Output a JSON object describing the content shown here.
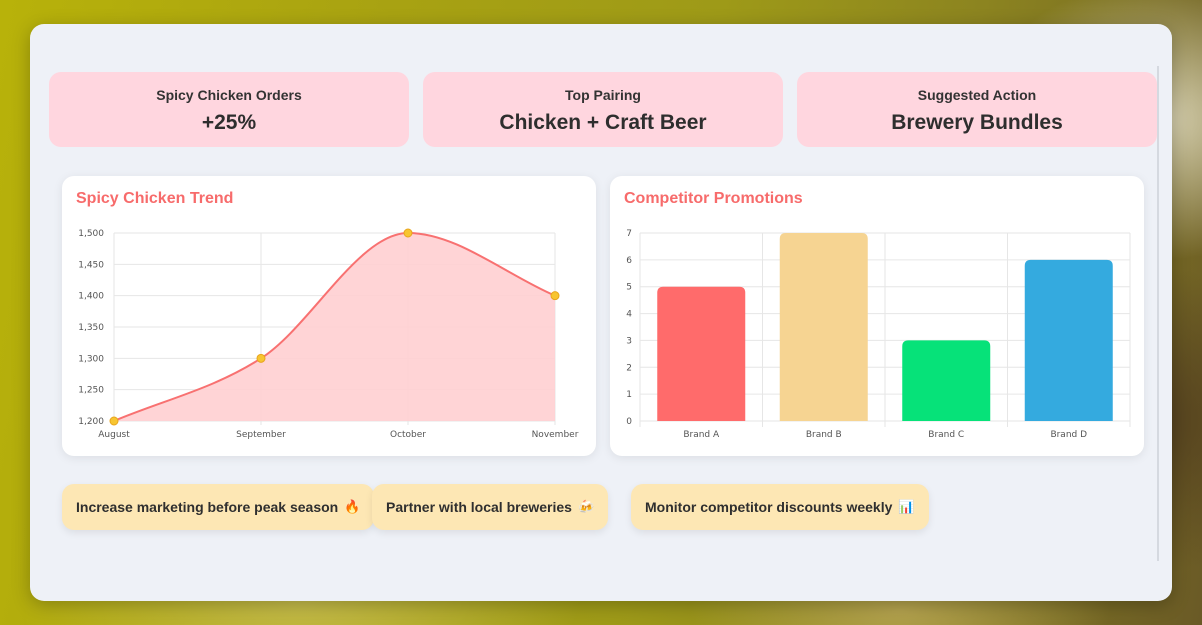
{
  "stats": [
    {
      "label": "Spicy Chicken Orders",
      "value": "+25%"
    },
    {
      "label": "Top Pairing",
      "value": "Chicken + Craft Beer"
    },
    {
      "label": "Suggested Action",
      "value": "Brewery Bundles"
    }
  ],
  "charts": {
    "trend_title": "Spicy Chicken Trend",
    "promo_title": "Competitor Promotions"
  },
  "chart_data": [
    {
      "type": "area",
      "title": "Spicy Chicken Trend",
      "categories": [
        "August",
        "September",
        "October",
        "November"
      ],
      "values": [
        1200,
        1300,
        1500,
        1400
      ],
      "ylim": [
        1200,
        1500
      ],
      "y_ticks": [
        "1,200",
        "1,250",
        "1,300",
        "1,350",
        "1,400",
        "1,450",
        "1,500"
      ],
      "colors": {
        "line": "#f87171",
        "fill": "#ffcfd2",
        "point": "#f7c531"
      },
      "grid": true
    },
    {
      "type": "bar",
      "title": "Competitor Promotions",
      "categories": [
        "Brand A",
        "Brand B",
        "Brand C",
        "Brand D"
      ],
      "values": [
        5,
        7,
        3,
        6
      ],
      "ylim": [
        0,
        7
      ],
      "y_ticks": [
        "0",
        "1",
        "2",
        "3",
        "4",
        "5",
        "6",
        "7"
      ],
      "colors": [
        "#ff6b6b",
        "#f6d492",
        "#06e279",
        "#34aadf"
      ],
      "grid": true
    }
  ],
  "tips": [
    {
      "label": "Increase marketing before peak season",
      "icon": "🔥",
      "icon_name": "fire-icon"
    },
    {
      "label": "Partner with local breweries",
      "icon": "🍻",
      "icon_name": "beer-icon"
    },
    {
      "label": "Monitor competitor discounts weekly",
      "icon": "📊",
      "icon_name": "bar-chart-icon"
    }
  ]
}
